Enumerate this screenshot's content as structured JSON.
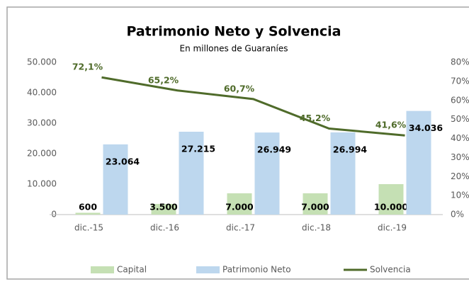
{
  "chart_data": {
    "type": "combo",
    "title": "Patrimonio Neto y Solvencia",
    "subtitle": "En millones de Guaraníes",
    "categories": [
      "dic.-15",
      "dic.-16",
      "dic.-17",
      "dic.-18",
      "dic.-19"
    ],
    "series": [
      {
        "name": "Capital",
        "type": "bar",
        "color": "#c5e0b4",
        "values": [
          600,
          3500,
          7000,
          7000,
          10000
        ],
        "value_labels": [
          "600",
          "3.500",
          "7.000",
          "7.000",
          "10.000"
        ]
      },
      {
        "name": "Patrimonio Neto",
        "type": "bar",
        "color": "#bdd7ee",
        "values": [
          23064,
          27215,
          26949,
          26994,
          34036
        ],
        "value_labels": [
          "23.064",
          "27.215",
          "26.949",
          "26.994",
          "34.036"
        ]
      },
      {
        "name": "Solvencia",
        "type": "line",
        "axis": "y2",
        "color": "#4f6b2a",
        "values": [
          72.1,
          65.2,
          60.7,
          45.2,
          41.6
        ],
        "value_labels": [
          "72,1%",
          "65,2%",
          "60,7%",
          "45,2%",
          "41,6%"
        ]
      }
    ],
    "ylim": [
      0,
      50000
    ],
    "yticks": [
      0,
      {
        "value": 10000,
        "label": "10.000"
      },
      {
        "value": 20000,
        "label": "20.000"
      },
      {
        "value": 30000,
        "label": "30.000"
      },
      {
        "value": 40000,
        "label": "40.000"
      },
      {
        "value": 50000,
        "label": "50.000"
      }
    ],
    "y2lim": [
      0,
      80
    ],
    "y2ticks": [
      {
        "value": 0,
        "label": "0%"
      },
      {
        "value": 10,
        "label": "10%"
      },
      {
        "value": 20,
        "label": "20%"
      },
      {
        "value": 30,
        "label": "30%"
      },
      {
        "value": 40,
        "label": "40%"
      },
      {
        "value": 50,
        "label": "50%"
      },
      {
        "value": 60,
        "label": "60%"
      },
      {
        "value": 70,
        "label": "70%"
      },
      {
        "value": 80,
        "label": "80%"
      }
    ],
    "grid": false,
    "legend": "bottom"
  }
}
